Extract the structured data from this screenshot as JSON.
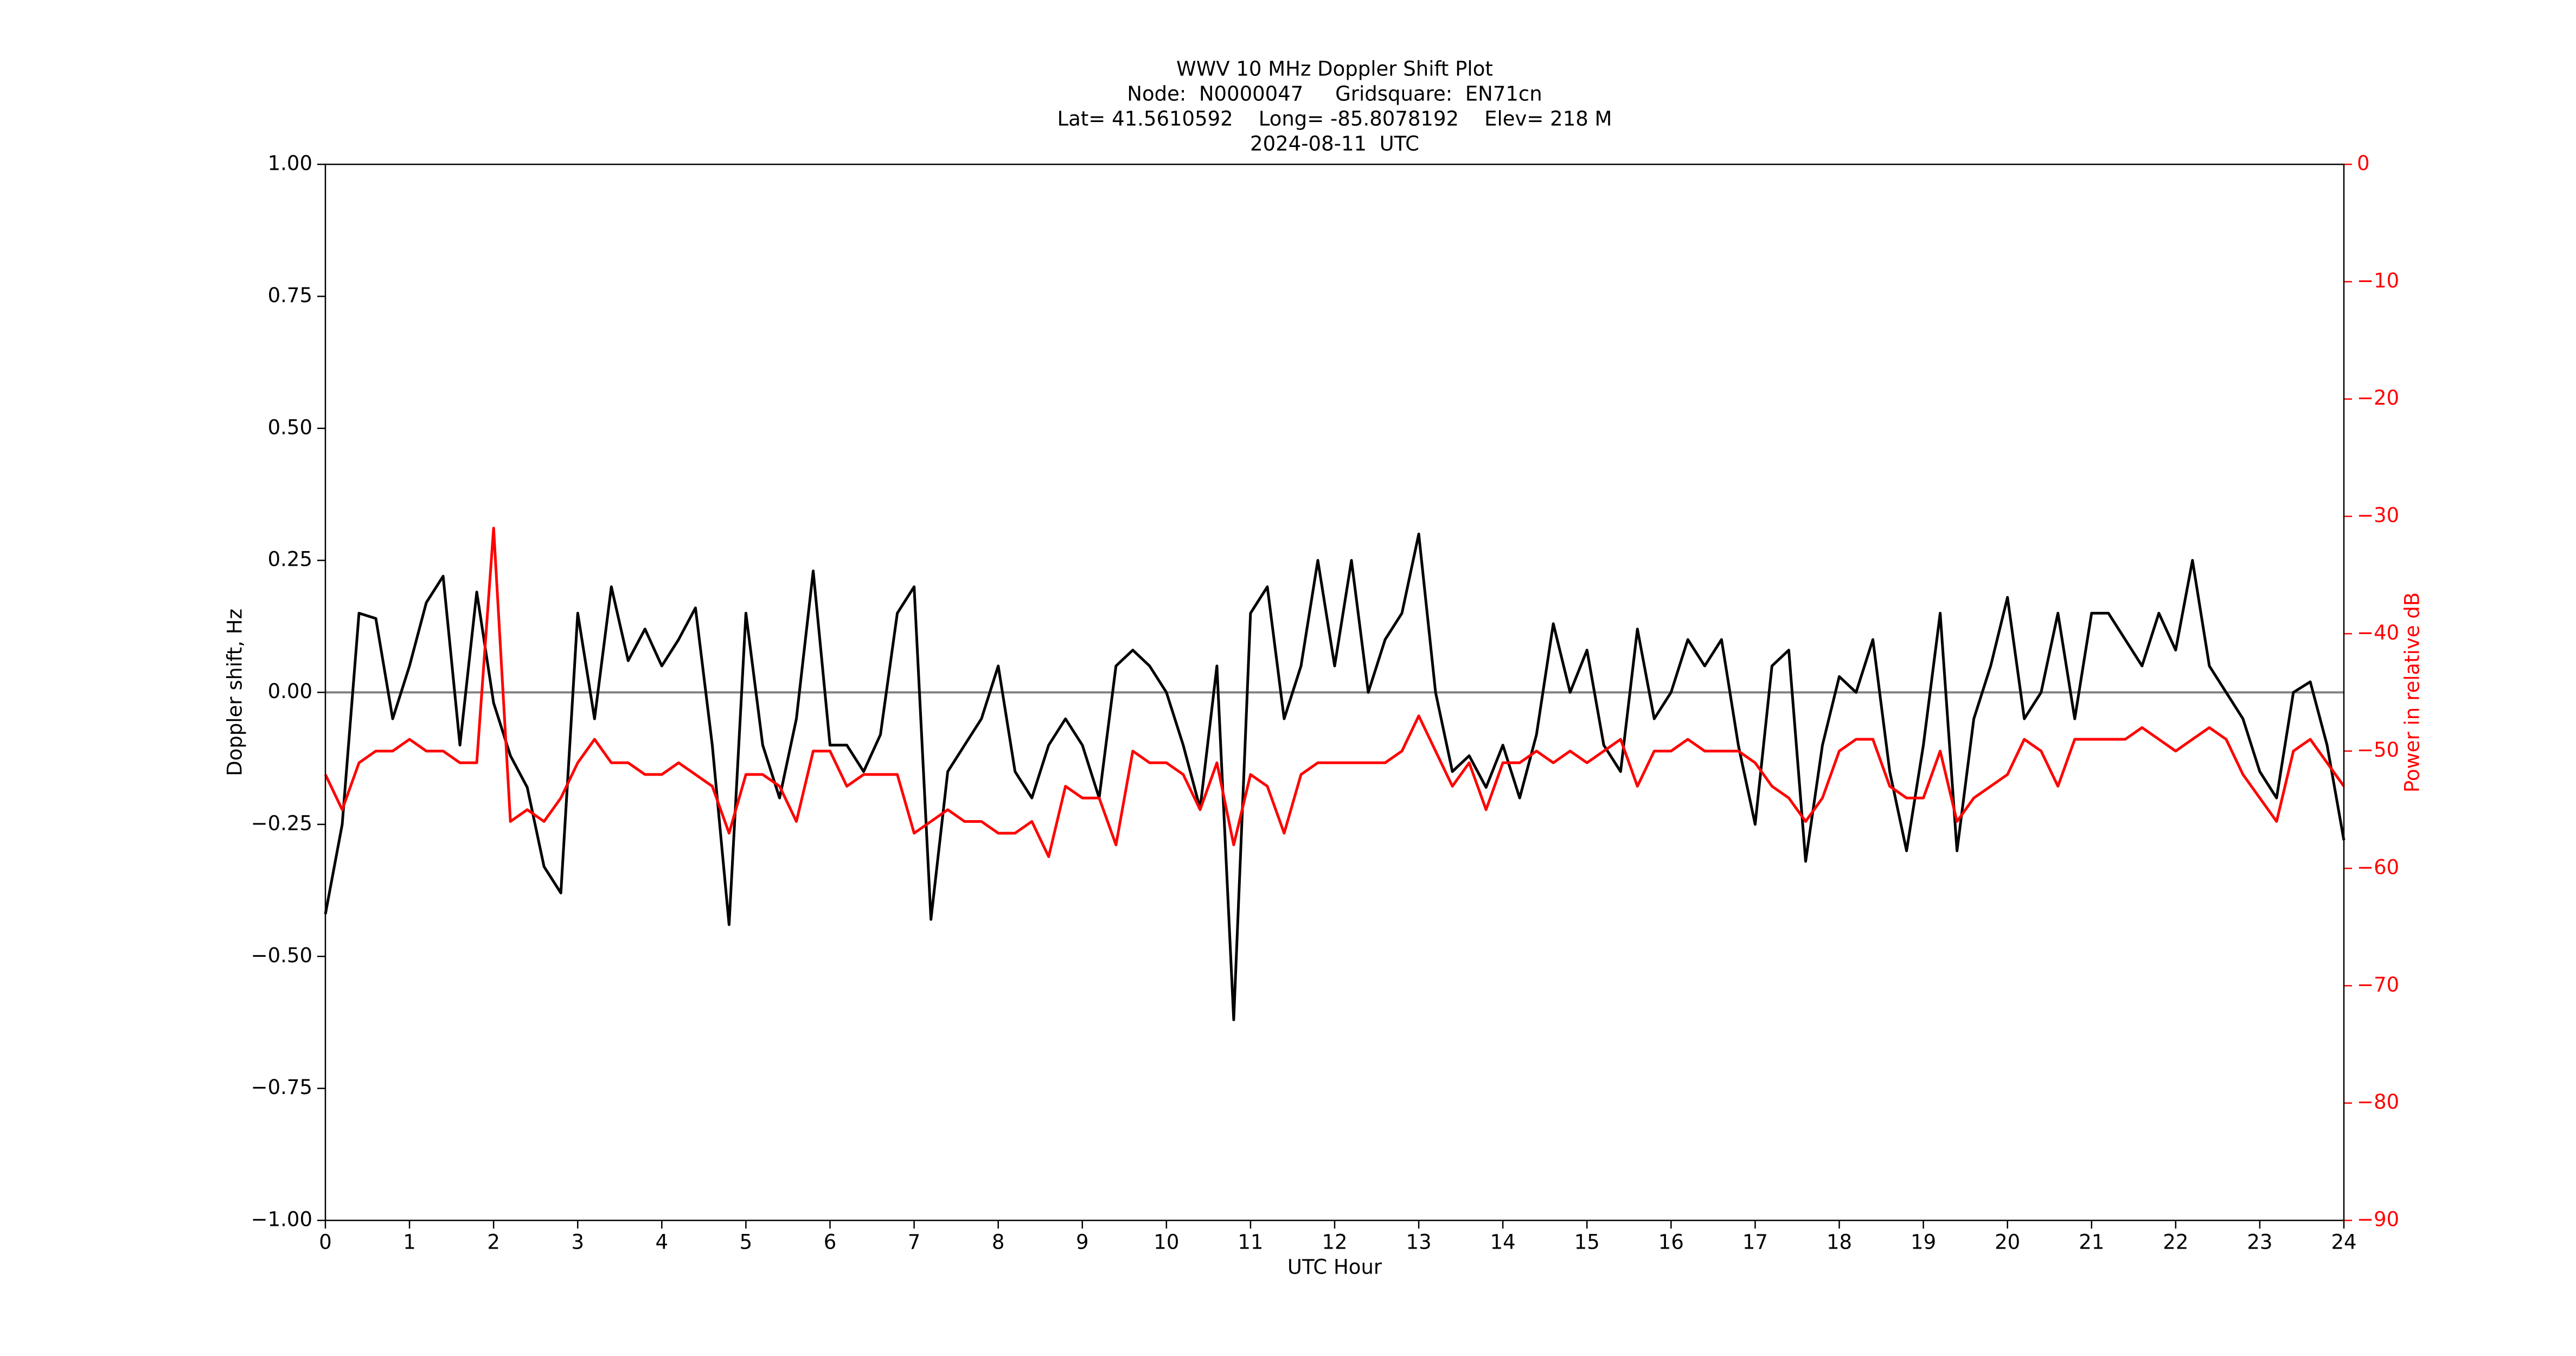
{
  "chart_data": {
    "type": "line",
    "title": [
      "WWV 10 MHz Doppler Shift Plot",
      "Node:  N0000047     Gridsquare:  EN71cn",
      "Lat= 41.5610592    Long= -85.8078192    Elev= 218 M",
      "2024-08-11  UTC"
    ],
    "x_label": "UTC Hour",
    "y_label": "Doppler shift, Hz",
    "y2_label": "Power in relative dB",
    "reference_line": 0,
    "xlim": [
      0,
      24
    ],
    "xticks": [
      0,
      1,
      2,
      3,
      4,
      5,
      6,
      7,
      8,
      9,
      10,
      11,
      12,
      13,
      14,
      15,
      16,
      17,
      18,
      19,
      20,
      21,
      22,
      23,
      24
    ],
    "ylim": [
      -1,
      1
    ],
    "yticks": [
      {
        "value": -1,
        "label": "−1.00"
      },
      {
        "value": -0.75,
        "label": "−0.75"
      },
      {
        "value": -0.5,
        "label": "−0.50"
      },
      {
        "value": -0.25,
        "label": "−0.25"
      },
      {
        "value": 0,
        "label": "0.00"
      },
      {
        "value": 0.25,
        "label": "0.25"
      },
      {
        "value": 0.5,
        "label": "0.50"
      },
      {
        "value": 0.75,
        "label": "0.75"
      },
      {
        "value": 1,
        "label": "1.00"
      }
    ],
    "y2lim": [
      -90,
      0
    ],
    "y2ticks": [
      {
        "value": -90,
        "label": "−90"
      },
      {
        "value": -80,
        "label": "−80"
      },
      {
        "value": -70,
        "label": "−70"
      },
      {
        "value": -60,
        "label": "−60"
      },
      {
        "value": -50,
        "label": "−50"
      },
      {
        "value": -40,
        "label": "−40"
      },
      {
        "value": -30,
        "label": "−30"
      },
      {
        "value": -20,
        "label": "−20"
      },
      {
        "value": -10,
        "label": "−10"
      },
      0
    ],
    "x": [
      0,
      0.2,
      0.4,
      0.6,
      0.8,
      1,
      1.2,
      1.4,
      1.6,
      1.8,
      2,
      2.2,
      2.4,
      2.6,
      2.8,
      3,
      3.2,
      3.4,
      3.6,
      3.8,
      4,
      4.2,
      4.4,
      4.6,
      4.8,
      5,
      5.2,
      5.4,
      5.6,
      5.8,
      6,
      6.2,
      6.4,
      6.6,
      6.8,
      7,
      7.2,
      7.4,
      7.6,
      7.8,
      8,
      8.2,
      8.4,
      8.6,
      8.8,
      9,
      9.2,
      9.4,
      9.6,
      9.8,
      10,
      10.2,
      10.4,
      10.6,
      10.8,
      11,
      11.2,
      11.4,
      11.6,
      11.8,
      12,
      12.2,
      12.4,
      12.6,
      12.8,
      13,
      13.2,
      13.4,
      13.6,
      13.8,
      14,
      14.2,
      14.4,
      14.6,
      14.8,
      15,
      15.2,
      15.4,
      15.6,
      15.8,
      16,
      16.2,
      16.4,
      16.6,
      16.8,
      17,
      17.2,
      17.4,
      17.6,
      17.8,
      18,
      18.2,
      18.4,
      18.6,
      18.8,
      19,
      19.2,
      19.4,
      19.6,
      19.8,
      20,
      20.2,
      20.4,
      20.6,
      20.8,
      21,
      21.2,
      21.4,
      21.6,
      21.8,
      22,
      22.2,
      22.4,
      22.6,
      22.8,
      23,
      23.2,
      23.4,
      23.6,
      23.8,
      24
    ],
    "series": [
      {
        "color": "#000000",
        "axis": "y",
        "values": [
          -0.42,
          -0.25,
          0.15,
          0.14,
          -0.05,
          0.05,
          0.17,
          0.22,
          -0.1,
          0.19,
          -0.02,
          -0.12,
          -0.18,
          -0.33,
          -0.38,
          0.15,
          -0.05,
          0.2,
          0.06,
          0.12,
          0.05,
          0.1,
          0.16,
          -0.1,
          -0.44,
          0.15,
          -0.1,
          -0.2,
          -0.05,
          0.23,
          -0.1,
          -0.1,
          -0.15,
          -0.08,
          0.15,
          0.2,
          -0.43,
          -0.15,
          -0.1,
          -0.05,
          0.05,
          -0.15,
          -0.2,
          -0.1,
          -0.05,
          -0.1,
          -0.2,
          0.05,
          0.08,
          0.05,
          0,
          -0.1,
          -0.22,
          0.05,
          -0.62,
          0.15,
          0.2,
          -0.05,
          0.05,
          0.25,
          0.05,
          0.25,
          0,
          0.1,
          0.15,
          0.3,
          0,
          -0.15,
          -0.12,
          -0.18,
          -0.1,
          -0.2,
          -0.08,
          0.13,
          0,
          0.08,
          -0.1,
          -0.15,
          0.12,
          -0.05,
          0,
          0.1,
          0.05,
          0.1,
          -0.1,
          -0.25,
          0.05,
          0.08,
          -0.32,
          -0.1,
          0.03,
          0,
          0.1,
          -0.15,
          -0.3,
          -0.1,
          0.15,
          -0.3,
          -0.05,
          0.05,
          0.18,
          -0.05,
          0,
          0.15,
          -0.05,
          0.15,
          0.15,
          0.1,
          0.05,
          0.15,
          0.08,
          0.25,
          0.05,
          0,
          -0.05,
          -0.15,
          -0.2,
          0,
          0.02,
          -0.1,
          -0.28
        ]
      },
      {
        "color": "#ff0000",
        "axis": "y2",
        "values": [
          -52,
          -55,
          -51,
          -50,
          -50,
          -49,
          -50,
          -50,
          -51,
          -51,
          -31,
          -56,
          -55,
          -56,
          -54,
          -51,
          -49,
          -51,
          -51,
          -52,
          -52,
          -51,
          -52,
          -53,
          -57,
          -52,
          -52,
          -53,
          -56,
          -50,
          -50,
          -53,
          -52,
          -52,
          -52,
          -57,
          -56,
          -55,
          -56,
          -56,
          -57,
          -57,
          -56,
          -59,
          -53,
          -54,
          -54,
          -58,
          -50,
          -51,
          -51,
          -52,
          -55,
          -51,
          -58,
          -52,
          -53,
          -57,
          -52,
          -51,
          -51,
          -51,
          -51,
          -51,
          -50,
          -47,
          -50,
          -53,
          -51,
          -55,
          -51,
          -51,
          -50,
          -51,
          -50,
          -51,
          -50,
          -49,
          -53,
          -50,
          -50,
          -49,
          -50,
          -50,
          -50,
          -51,
          -53,
          -54,
          -56,
          -54,
          -50,
          -49,
          -49,
          -53,
          -54,
          -54,
          -50,
          -56,
          -54,
          -53,
          -52,
          -49,
          -50,
          -53,
          -49,
          -49,
          -49,
          -49,
          -48,
          -49,
          -50,
          -49,
          -48,
          -49,
          -52,
          -54,
          -56,
          -50,
          -49,
          -51,
          -53
        ]
      }
    ]
  }
}
